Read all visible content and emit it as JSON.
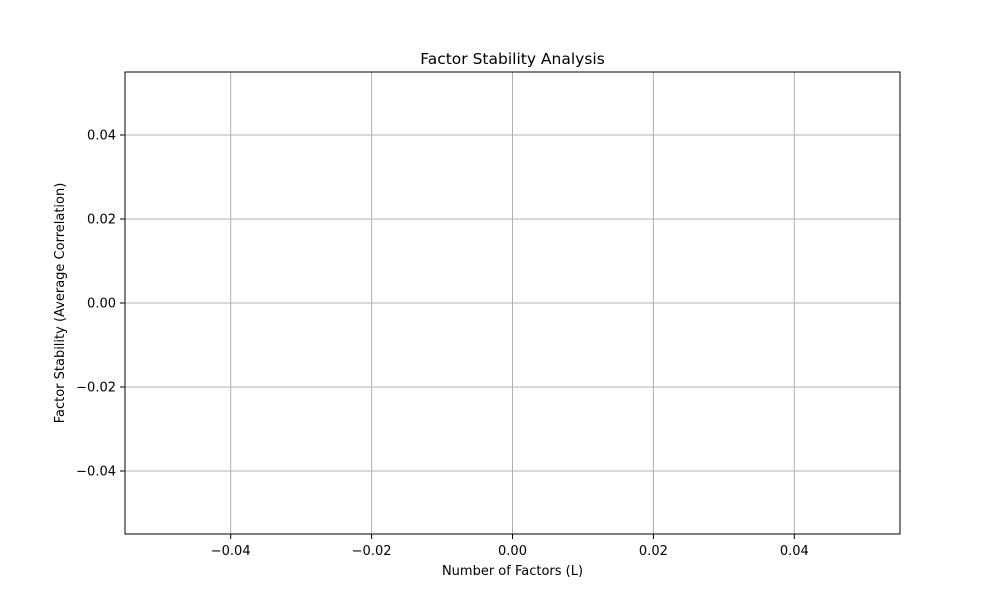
{
  "chart_data": {
    "type": "line",
    "title": "Factor Stability Analysis",
    "xlabel": "Number of Factors (L)",
    "ylabel": "Factor Stability (Average Correlation)",
    "xlim": [
      -0.055,
      0.055
    ],
    "ylim": [
      -0.055,
      0.055
    ],
    "xticks": [
      -0.04,
      -0.02,
      0.0,
      0.02,
      0.04
    ],
    "xtick_labels": [
      "−0.04",
      "−0.02",
      "0.00",
      "0.02",
      "0.04"
    ],
    "yticks": [
      -0.04,
      -0.02,
      0.0,
      0.02,
      0.04
    ],
    "ytick_labels": [
      "−0.04",
      "−0.02",
      "0.00",
      "0.02",
      "0.04"
    ],
    "grid": true,
    "series": [
      {
        "name": "",
        "x": [],
        "y": []
      }
    ],
    "colors": {
      "grid": "#b0b0b0",
      "frame": "#000000",
      "series": "#1f77b4"
    }
  }
}
